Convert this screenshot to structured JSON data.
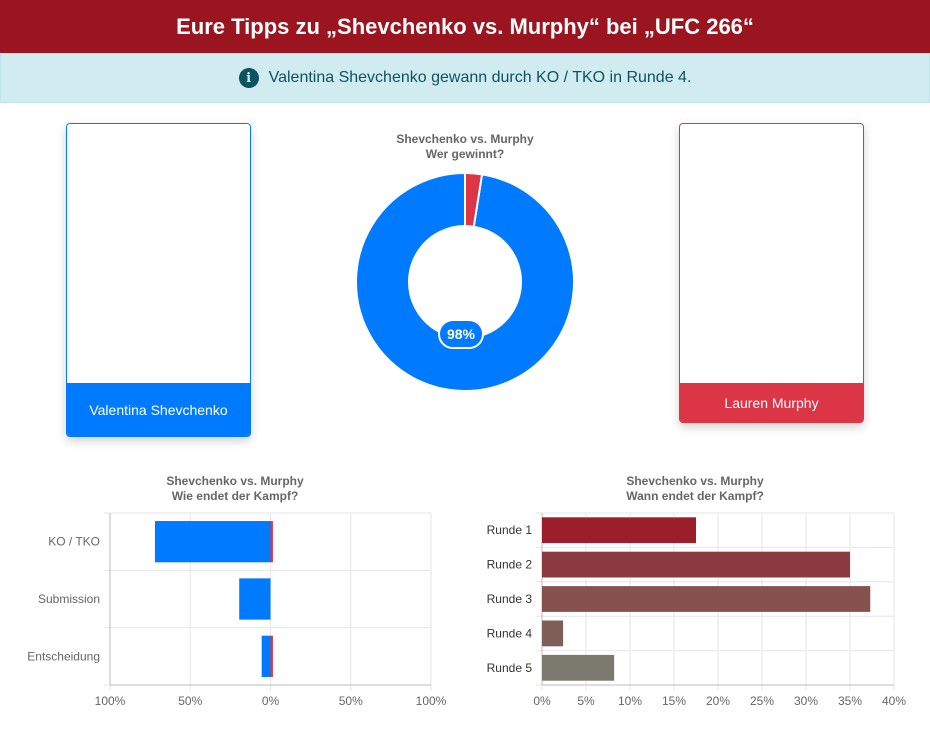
{
  "header": {
    "title": "Eure Tipps zu „Shevchenko vs. Murphy“ bei „UFC 266“"
  },
  "info": {
    "icon": "info-circle-icon",
    "text": "Valentina Shevchenko gewann durch KO / TKO in Runde 4."
  },
  "fighters": {
    "left": {
      "name": "Valentina Shevchenko",
      "color": "#007bff"
    },
    "right": {
      "name": "Lauren Murphy",
      "color": "#dc3545"
    }
  },
  "chart_data": [
    {
      "type": "pie",
      "title": [
        "Shevchenko vs. Murphy",
        "Wer gewinnt?"
      ],
      "labels": [
        "Valentina Shevchenko",
        "Lauren Murphy"
      ],
      "values": [
        97.5,
        2.5
      ],
      "colors": [
        "#007bff",
        "#dc3545"
      ],
      "data_label": "98%"
    },
    {
      "type": "bar",
      "orientation": "horizontal",
      "title": [
        "Shevchenko vs. Murphy",
        "Wie endet der Kampf?"
      ],
      "categories": [
        "KO / TKO",
        "Submission",
        "Entscheidung"
      ],
      "series": [
        {
          "values": [
            72,
            19.5,
            5.5
          ],
          "color": "#007bff",
          "direction": "left"
        },
        {
          "values": [
            1.5,
            0,
            1.5
          ],
          "color": "#dc3545",
          "direction": "right"
        }
      ],
      "xlim": [
        -100,
        100
      ],
      "xticks": [
        "100%",
        "50%",
        "0%",
        "50%",
        "100%"
      ]
    },
    {
      "type": "bar",
      "orientation": "horizontal",
      "title": [
        "Shevchenko vs. Murphy",
        "Wann endet der Kampf?"
      ],
      "categories": [
        "Runde 1",
        "Runde 2",
        "Runde 3",
        "Runde 4",
        "Runde 5"
      ],
      "values": [
        17.5,
        35,
        37.3,
        2.4,
        8.2
      ],
      "colors": [
        "#9b1e2b",
        "#8b3a40",
        "#87514e",
        "#7d5f58",
        "#7a7a6e"
      ],
      "xlim": [
        0,
        40
      ],
      "xticks": [
        "0%",
        "5%",
        "10%",
        "15%",
        "20%",
        "25%",
        "30%",
        "35%",
        "40%"
      ]
    }
  ]
}
